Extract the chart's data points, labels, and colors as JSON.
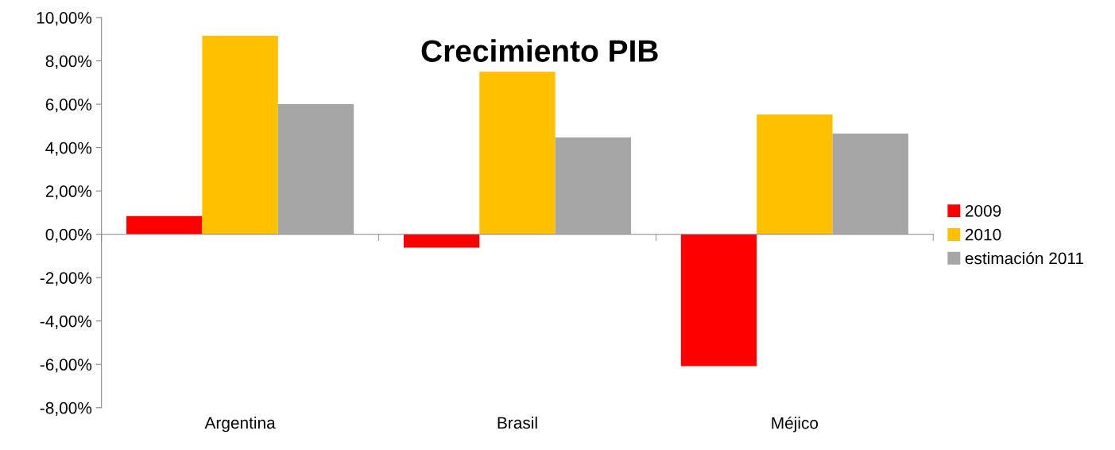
{
  "chart_data": {
    "type": "bar",
    "title": "Crecimiento PIB",
    "categories": [
      "Argentina",
      "Brasil",
      "Méjico"
    ],
    "series": [
      {
        "name": "2009",
        "color": "#ff0000",
        "values": [
          0.84,
          -0.62,
          -6.08
        ]
      },
      {
        "name": "2010",
        "color": "#ffc000",
        "values": [
          9.16,
          7.5,
          5.53
        ]
      },
      {
        "name": "estimación 2011",
        "color": "#a6a6a6",
        "values": [
          6.0,
          4.47,
          4.65
        ]
      }
    ],
    "ylim": [
      -8,
      10
    ],
    "yticks": [
      {
        "value": -8,
        "label": "-8,00%"
      },
      {
        "value": -6,
        "label": "-6,00%"
      },
      {
        "value": -4,
        "label": "-4,00%"
      },
      {
        "value": -2,
        "label": "-2,00%"
      },
      {
        "value": 0,
        "label": "0,00%"
      },
      {
        "value": 2,
        "label": "2,00%"
      },
      {
        "value": 4,
        "label": "4,00%"
      },
      {
        "value": 6,
        "label": "6,00%"
      },
      {
        "value": 8,
        "label": "8,00%"
      },
      {
        "value": 10,
        "label": "10,00%"
      }
    ],
    "legend": "right"
  }
}
